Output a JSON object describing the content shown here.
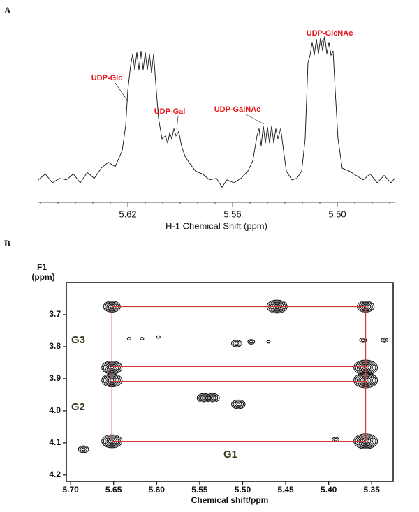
{
  "chart_data": [
    {
      "type": "line",
      "panel": "A",
      "xlabel": "H-1 Chemical Shift (ppm)",
      "x": [
        5.6712,
        5.6672,
        5.6632,
        5.6592,
        5.6552,
        5.6512,
        5.6472,
        5.6432,
        5.6392,
        5.6352,
        5.6312,
        5.6272,
        5.6232,
        5.6212,
        5.62,
        5.6184,
        5.6172,
        5.616,
        5.6148,
        5.6136,
        5.6124,
        5.6112,
        5.61,
        5.6088,
        5.6076,
        5.6064,
        5.6052,
        5.604,
        5.6024,
        5.6004,
        5.5984,
        5.5972,
        5.596,
        5.5948,
        5.5936,
        5.5924,
        5.5908,
        5.5892,
        5.5872,
        5.5844,
        5.5812,
        5.5772,
        5.5732,
        5.5692,
        5.566,
        5.5632,
        5.5592,
        5.5552,
        5.5512,
        5.5484,
        5.546,
        5.5448,
        5.5436,
        5.5424,
        5.5412,
        5.54,
        5.5388,
        5.5376,
        5.5364,
        5.5352,
        5.534,
        5.5324,
        5.5308,
        5.5292,
        5.526,
        5.5232,
        5.5204,
        5.5184,
        5.5168,
        5.5156,
        5.5144,
        5.5132,
        5.512,
        5.5108,
        5.5096,
        5.5084,
        5.5072,
        5.506,
        5.5048,
        5.5036,
        5.5024,
        5.5012,
        5.4996,
        5.4972,
        5.4932,
        5.4892,
        5.4852,
        5.4812,
        5.4772,
        5.4732,
        5.4692,
        5.4672
      ],
      "values": [
        2,
        6,
        0,
        3,
        2,
        6,
        0,
        7,
        3,
        10,
        14,
        11,
        22,
        39,
        63,
        80,
        88,
        77,
        89,
        77,
        90,
        77,
        89,
        77,
        88,
        75,
        88,
        68,
        44,
        30,
        32,
        27,
        34,
        30,
        37,
        32,
        35,
        25,
        18,
        13,
        8,
        6,
        2,
        3,
        -3,
        2,
        0,
        3,
        8,
        15,
        32,
        37,
        25,
        39,
        27,
        38,
        27,
        39,
        27,
        37,
        30,
        37,
        22,
        8,
        2,
        3,
        8,
        30,
        82,
        87,
        96,
        87,
        98,
        88,
        99,
        90,
        100,
        88,
        96,
        87,
        90,
        63,
        30,
        10,
        8,
        5,
        2,
        6,
        0,
        5,
        0,
        3
      ],
      "color": "#111111",
      "xlim": [
        5.6712,
        5.4672
      ],
      "ylim": [
        -5,
        110
      ],
      "xticks": [
        5.62,
        5.56,
        {
          "value": 5.5,
          "label": "5.50"
        }
      ],
      "xticks_minor": [
        5.67,
        5.66,
        5.65,
        5.64,
        5.63,
        5.62,
        5.61,
        5.6,
        5.59,
        5.58,
        5.57,
        5.56,
        5.55,
        5.54,
        5.53,
        5.52,
        5.51,
        5.5,
        5.49,
        5.48,
        5.47
      ],
      "annotations": [
        "UDP-Glc",
        "UDP-Gal",
        "UDP-GalNAc",
        "UDP-GlcNAc"
      ]
    },
    {
      "type": "contour",
      "panel": "B",
      "xlabel": "Chemical shift/ppm",
      "ylabel": [
        "F1",
        "(ppm)"
      ],
      "x": [
        5.652,
        5.46,
        5.357,
        5.632,
        5.617,
        5.598,
        5.507,
        5.49,
        5.47,
        5.36,
        5.335,
        5.652,
        5.652,
        5.357,
        5.357,
        5.545,
        5.535,
        5.505,
        5.685,
        5.652,
        5.392,
        5.357
      ],
      "values": [
        3.675,
        3.675,
        3.675,
        3.775,
        3.775,
        3.77,
        3.79,
        3.785,
        3.785,
        3.78,
        3.78,
        3.865,
        3.905,
        3.865,
        3.905,
        3.96,
        3.96,
        3.98,
        4.12,
        4.095,
        4.09,
        4.095
      ],
      "sizes": [
        5,
        6,
        5,
        1,
        1,
        1,
        3,
        2,
        1,
        2,
        2,
        6,
        6,
        7,
        7,
        4,
        4,
        4,
        3,
        6,
        2,
        7
      ],
      "color": "#111111",
      "box_rows": [
        3.675,
        3.862,
        3.908,
        4.095
      ],
      "box_cols": [
        5.652,
        5.357
      ],
      "box_color": "#d23a3a",
      "xlim": [
        5.705,
        5.325
      ],
      "ylim": [
        3.6,
        4.22
      ],
      "xticks": [
        {
          "value": 5.7,
          "label": "5.70"
        },
        5.65,
        {
          "value": 5.6,
          "label": "5.60"
        },
        5.55,
        {
          "value": 5.5,
          "label": "5.50"
        },
        5.45,
        {
          "value": 5.4,
          "label": "5.40"
        },
        5.35
      ],
      "yticks": [
        3.7,
        3.8,
        3.9,
        {
          "value": 4,
          "label": "4.0"
        },
        4.1,
        4.2
      ],
      "annotations": [
        "G1",
        "G2",
        "G3"
      ]
    }
  ]
}
